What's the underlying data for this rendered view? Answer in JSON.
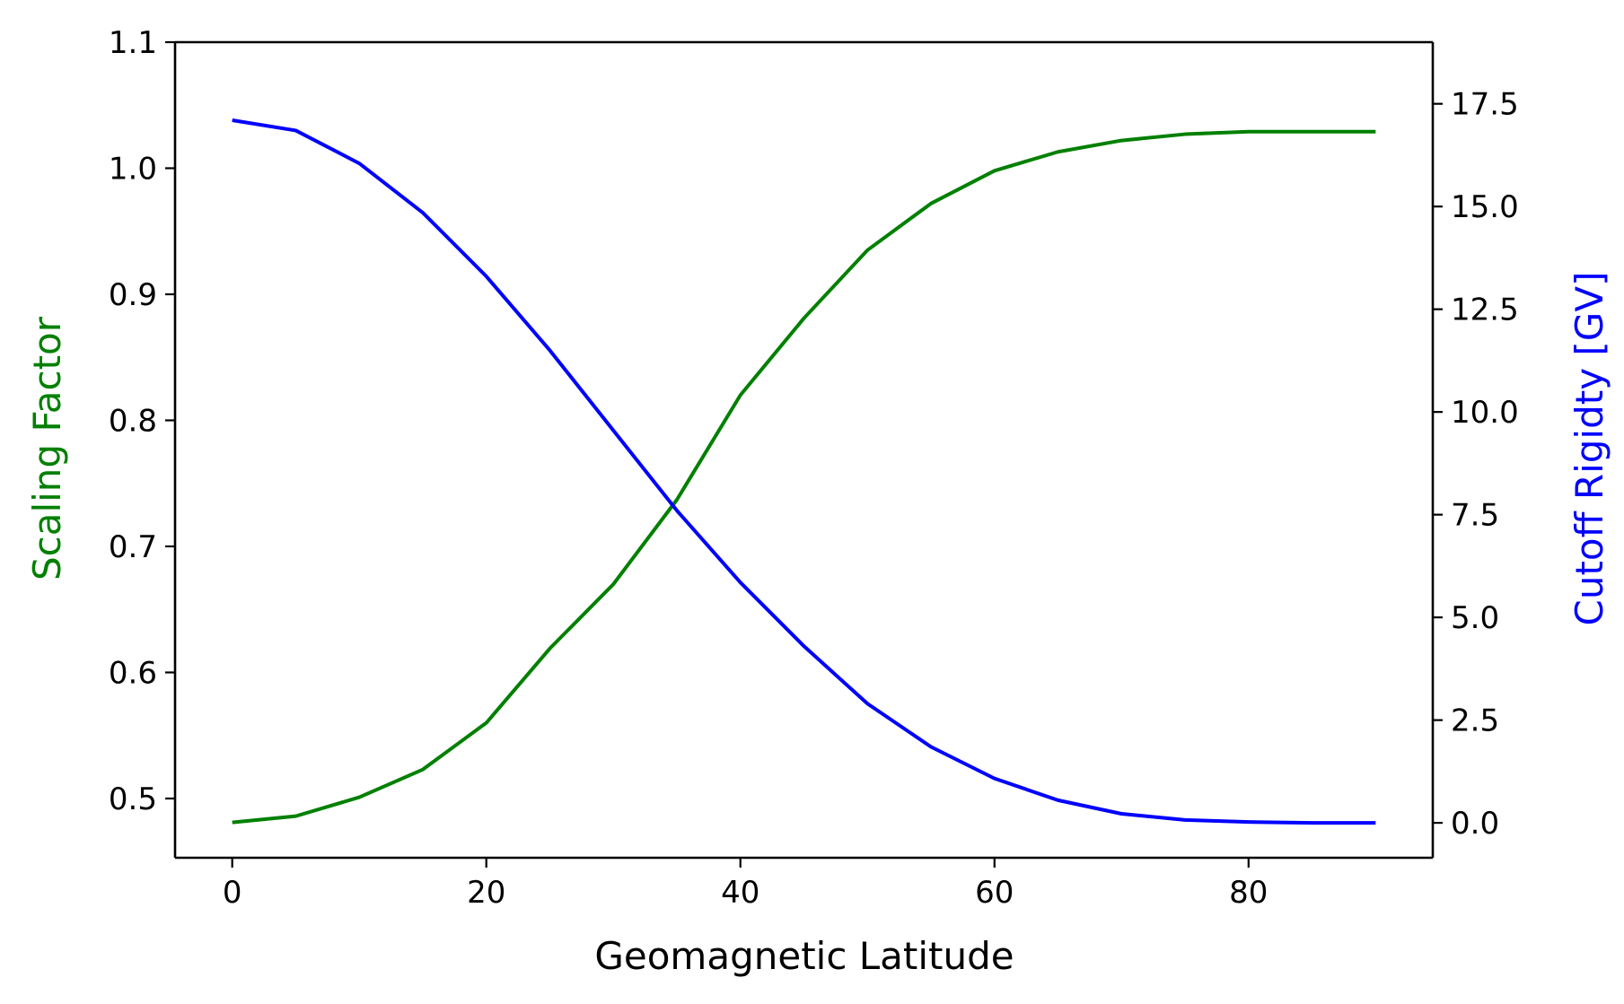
{
  "chart_data": {
    "type": "line",
    "xlabel": "Geomagnetic Latitude",
    "ylabel_left": "Scaling Factor",
    "ylabel_right": "Cutoff Rigidty [GV]",
    "xlim": [
      -4.5,
      94.5
    ],
    "ylim_left": [
      0.453,
      1.1
    ],
    "ylim_right": [
      -0.85,
      19.0
    ],
    "xticks": [
      0,
      20,
      40,
      60,
      80
    ],
    "xtick_labels": [
      "0",
      "20",
      "40",
      "60",
      "80"
    ],
    "yticks_left": [
      0.5,
      0.6,
      0.7,
      0.8,
      0.9,
      1.0,
      1.1
    ],
    "ytick_labels_left": [
      "0.5",
      "0.6",
      "0.7",
      "0.8",
      "0.9",
      "1.0",
      "1.1"
    ],
    "yticks_right": [
      0.0,
      2.5,
      5.0,
      7.5,
      10.0,
      12.5,
      15.0,
      17.5
    ],
    "ytick_labels_right": [
      "0.0",
      "2.5",
      "5.0",
      "7.5",
      "10.0",
      "12.5",
      "15.0",
      "17.5"
    ],
    "grid": false,
    "x": [
      0,
      5,
      10,
      15,
      20,
      25,
      30,
      35,
      40,
      45,
      50,
      55,
      60,
      65,
      70,
      75,
      80,
      85,
      90
    ],
    "series": [
      {
        "axis": "left",
        "color": "#008000",
        "values": [
          0.481,
          0.486,
          0.501,
          0.523,
          0.56,
          0.619,
          0.67,
          0.737,
          0.82,
          0.881,
          0.935,
          0.972,
          0.998,
          1.013,
          1.022,
          1.027,
          1.029,
          1.029,
          1.029
        ]
      },
      {
        "axis": "right",
        "color": "#0000ff",
        "values": [
          17.1,
          16.85,
          16.05,
          14.85,
          13.3,
          11.5,
          9.55,
          7.6,
          5.85,
          4.3,
          2.9,
          1.85,
          1.08,
          0.55,
          0.22,
          0.07,
          0.02,
          0.0,
          0.0
        ]
      }
    ]
  }
}
